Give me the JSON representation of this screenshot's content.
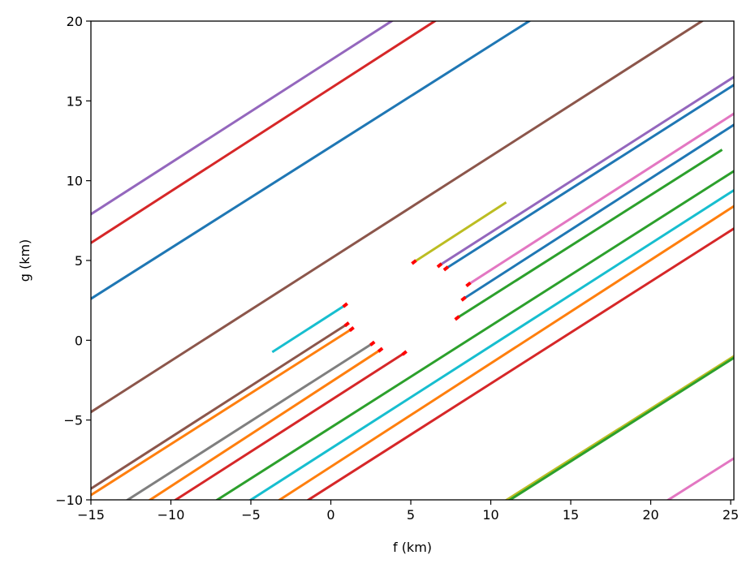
{
  "chart_data": {
    "type": "line",
    "xlabel": "f (km)",
    "ylabel": "g (km)",
    "xlim": [
      -15,
      25.2
    ],
    "ylim": [
      -10,
      20
    ],
    "xticks": [
      -15,
      -10,
      -5,
      0,
      5,
      10,
      15,
      20,
      25
    ],
    "yticks": [
      -10,
      -5,
      0,
      5,
      10,
      15,
      20
    ],
    "xtick_labels": [
      "−15",
      "−10",
      "−5",
      "0",
      "5",
      "10",
      "15",
      "20",
      "25"
    ],
    "ytick_labels": [
      "−10",
      "−5",
      "0",
      "5",
      "10",
      "15",
      "20"
    ],
    "grid": false,
    "line_width": 2,
    "series": [
      {
        "color": "#9467bd",
        "x": [
          -15,
          3.8
        ],
        "y": [
          7.9,
          20
        ]
      },
      {
        "color": "#d62728",
        "x": [
          -15,
          6.5
        ],
        "y": [
          6.1,
          20
        ]
      },
      {
        "color": "#1f77b4",
        "x": [
          -15,
          12.4
        ],
        "y": [
          2.6,
          20
        ]
      },
      {
        "color": "#8c564b",
        "x": [
          -15,
          23.2
        ],
        "y": [
          -4.5,
          20
        ]
      },
      {
        "color": "#9467bd",
        "x": [
          6.8,
          25.2
        ],
        "y": [
          4.7,
          16.5
        ]
      },
      {
        "color": "#1f77b4",
        "x": [
          7.2,
          25.2
        ],
        "y": [
          4.5,
          16.0
        ]
      },
      {
        "color": "#e377c2",
        "x": [
          8.6,
          25.2
        ],
        "y": [
          3.5,
          14.2
        ]
      },
      {
        "color": "#1f77b4",
        "x": [
          8.3,
          25.2
        ],
        "y": [
          2.6,
          13.5
        ]
      },
      {
        "color": "#2ca02c",
        "x": [
          7.9,
          24.4
        ],
        "y": [
          1.4,
          11.9
        ]
      },
      {
        "color": "#2ca02c",
        "x": [
          -7.1,
          25.2
        ],
        "y": [
          -10,
          10.6
        ]
      },
      {
        "color": "#17becf",
        "x": [
          -5.0,
          25.2
        ],
        "y": [
          -10,
          9.4
        ]
      },
      {
        "color": "#ff7f0e",
        "x": [
          -3.2,
          25.2
        ],
        "y": [
          -10,
          8.4
        ]
      },
      {
        "color": "#d62728",
        "x": [
          -1.4,
          25.2
        ],
        "y": [
          -10,
          7.0
        ]
      },
      {
        "color": "#bcbd22",
        "x": [
          5.2,
          10.9
        ],
        "y": [
          4.9,
          8.6
        ]
      },
      {
        "color": "#17becf",
        "x": [
          -3.6,
          0.9
        ],
        "y": [
          -0.7,
          2.2
        ]
      },
      {
        "color": "#8c564b",
        "x": [
          -15,
          1.0
        ],
        "y": [
          -9.3,
          1.0
        ]
      },
      {
        "color": "#ff7f0e",
        "x": [
          -15,
          1.3
        ],
        "y": [
          -9.7,
          0.7
        ]
      },
      {
        "color": "#7f7f7f",
        "x": [
          -12.7,
          2.6
        ],
        "y": [
          -10,
          -0.2
        ]
      },
      {
        "color": "#ff7f0e",
        "x": [
          -11.3,
          3.1
        ],
        "y": [
          -10,
          -0.6
        ]
      },
      {
        "color": "#d62728",
        "x": [
          -9.7,
          4.6
        ],
        "y": [
          -10,
          -0.8
        ]
      },
      {
        "color": "#bcbd22",
        "x": [
          11.0,
          25.2
        ],
        "y": [
          -10,
          -1.0
        ]
      },
      {
        "color": "#2ca02c",
        "x": [
          11.2,
          25.2
        ],
        "y": [
          -10,
          -1.1
        ]
      },
      {
        "color": "#e377c2",
        "x": [
          21.1,
          25.2
        ],
        "y": [
          -10,
          -7.4
        ]
      }
    ],
    "markers": [
      {
        "x": 5.2,
        "y": 4.9
      },
      {
        "x": 6.8,
        "y": 4.7
      },
      {
        "x": 7.2,
        "y": 4.5
      },
      {
        "x": 8.6,
        "y": 3.5
      },
      {
        "x": 8.3,
        "y": 2.6
      },
      {
        "x": 7.9,
        "y": 1.4
      },
      {
        "x": 0.9,
        "y": 2.2
      },
      {
        "x": 1.0,
        "y": 1.0
      },
      {
        "x": 1.3,
        "y": 0.7
      },
      {
        "x": 2.6,
        "y": -0.2
      },
      {
        "x": 3.1,
        "y": -0.6
      },
      {
        "x": 4.6,
        "y": -0.8
      }
    ],
    "marker_color": "#ff0000"
  }
}
